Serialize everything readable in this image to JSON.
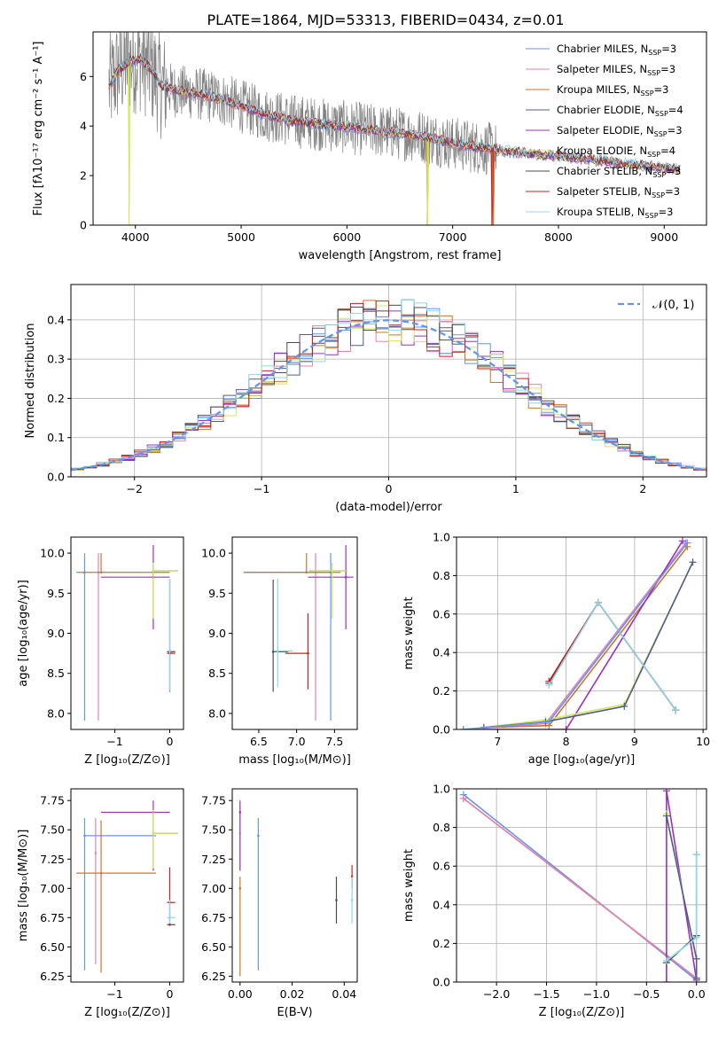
{
  "colors": {
    "Chabrier MILES": "#6495ed",
    "Salpeter MILES": "#e383b4",
    "Kroupa MILES": "#d17527",
    "Chabrier ELODIE": "#4f5d8f",
    "Salpeter ELODIE": "#9b30c0",
    "Kroupa ELODIE": "#d4e85a",
    "Chabrier STELIB": "#4c4c4c",
    "Salpeter STELIB": "#c42222",
    "Kroupa STELIB": "#8fd6e8",
    "data": "#808080"
  },
  "chart_data": [
    {
      "id": "spectrum",
      "type": "line",
      "title": "PLATE=1864, MJD=53313, FIBERID=0434, z=0.01",
      "xlabel": "wavelength [Angstrom, rest frame]",
      "ylabel": "Flux [fλ10⁻¹⁷ erg cm⁻² s⁻¹ A⁻¹]",
      "xlim": [
        3600,
        9400
      ],
      "ylim": [
        0,
        7.8
      ],
      "xticks": [
        4000,
        5000,
        6000,
        7000,
        8000,
        9000
      ],
      "yticks": [
        0,
        2,
        4,
        6
      ],
      "grid": false,
      "legend_loc": "upper right",
      "legend": [
        {
          "name": "Chabrier MILES",
          "nssp": "3"
        },
        {
          "name": "Salpeter MILES",
          "nssp": "3"
        },
        {
          "name": "Kroupa MILES",
          "nssp": "3"
        },
        {
          "name": "Chabrier ELODIE",
          "nssp": "4"
        },
        {
          "name": "Salpeter ELODIE",
          "nssp": "3"
        },
        {
          "name": "Kroupa ELODIE",
          "nssp": "4"
        },
        {
          "name": "Chabrier STELIB",
          "nssp": "3"
        },
        {
          "name": "Salpeter STELIB",
          "nssp": "3"
        },
        {
          "name": "Kroupa STELIB",
          "nssp": "3"
        }
      ],
      "model_continuum": {
        "x": [
          3750,
          3850,
          3950,
          4050,
          4150,
          4250,
          4400,
          4600,
          4800,
          5000,
          5200,
          5500,
          5800,
          6100,
          6400,
          6700,
          7000,
          7300,
          7500,
          7800,
          8100,
          8400,
          8700,
          9000,
          9150
        ],
        "y": [
          5.6,
          6.3,
          6.6,
          6.7,
          6.3,
          5.6,
          5.4,
          5.3,
          5.1,
          4.8,
          4.5,
          4.2,
          4.05,
          3.9,
          3.75,
          3.6,
          3.3,
          3.1,
          3.0,
          2.85,
          2.75,
          2.6,
          2.45,
          2.3,
          2.25
        ]
      },
      "model_dropouts": [
        {
          "series": "Kroupa ELODIE",
          "x": 3940
        },
        {
          "series": "Kroupa MILES",
          "x": 6760
        },
        {
          "series": "Kroupa ELODIE",
          "x": 6765
        },
        {
          "series": "Salpeter STELIB",
          "x": 7370
        },
        {
          "series": "Kroupa MILES",
          "x": 7385
        }
      ],
      "data_noisy_until": 7420
    },
    {
      "id": "residuals",
      "type": "histogram",
      "xlabel": "(data-model)/error",
      "ylabel": "Normed distribution",
      "xlim": [
        -2.5,
        2.5
      ],
      "ylim": [
        0,
        0.49
      ],
      "xticks": [
        -2,
        -1,
        0,
        1,
        2
      ],
      "yticks": [
        0.0,
        0.1,
        0.2,
        0.3,
        0.4
      ],
      "grid": true,
      "legend_loc": "upper right",
      "legend": [
        {
          "name": "𝒩(0, 1)"
        }
      ],
      "bin_width": 0.1,
      "bin_start": -2.5,
      "reference_curve": "normal(0,1)"
    },
    {
      "id": "z-age",
      "type": "errorbar",
      "xlabel": "Z [log₁₀(Z/Z⊙)]",
      "ylabel": "age  [log₁₀(age/yr)]",
      "xlim": [
        -1.8,
        0.25
      ],
      "ylim": [
        7.8,
        10.2
      ],
      "xticks": [
        -1,
        0
      ],
      "yticks": [
        8.0,
        8.5,
        9.0,
        9.5,
        10.0
      ],
      "points": [
        {
          "series": "Chabrier MILES",
          "x": -1.55,
          "y": 9.76,
          "xerr": [
            0,
            0
          ],
          "yerr": [
            1.85,
            0.24
          ]
        },
        {
          "series": "Salpeter MILES",
          "x": -1.3,
          "y": 9.76,
          "xerr": [
            0,
            0
          ],
          "yerr": [
            1.85,
            0.24
          ]
        },
        {
          "series": "Kroupa MILES",
          "x": -1.25,
          "y": 9.76,
          "xerr": [
            0.45,
            1.25
          ],
          "yerr": [
            0,
            0.24
          ]
        },
        {
          "series": "Chabrier ELODIE",
          "x": -0.3,
          "y": 9.78,
          "xerr": [
            0,
            0.45
          ],
          "yerr": [
            0,
            0
          ]
        },
        {
          "series": "Salpeter ELODIE",
          "x": -0.3,
          "y": 9.7,
          "xerr": [
            0.95,
            0.3
          ],
          "yerr": [
            0.65,
            0.4
          ]
        },
        {
          "series": "Kroupa ELODIE",
          "x": -0.3,
          "y": 9.78,
          "xerr": [
            0,
            0.45
          ],
          "yerr": [
            0.6,
            0.1
          ]
        },
        {
          "series": "Chabrier STELIB",
          "x": 0.0,
          "y": 8.77,
          "xerr": [
            0.05,
            0.1
          ],
          "yerr": [
            0.5,
            0.9
          ]
        },
        {
          "series": "Salpeter STELIB",
          "x": 0.0,
          "y": 8.75,
          "xerr": [
            0.05,
            0.1
          ],
          "yerr": [
            0,
            0
          ]
        },
        {
          "series": "Kroupa STELIB",
          "x": 0.0,
          "y": 8.78,
          "xerr": [
            0.05,
            0.1
          ],
          "yerr": [
            0.5,
            0.9
          ]
        }
      ]
    },
    {
      "id": "mass-age",
      "type": "errorbar",
      "xlabel": "mass [log₁₀(M/M⊙)]",
      "ylabel": "",
      "xlim": [
        6.15,
        7.8
      ],
      "ylim": [
        7.8,
        10.2
      ],
      "xticks": [
        6.5,
        7.0,
        7.5
      ],
      "yticks": [
        8.0,
        8.5,
        9.0,
        9.5,
        10.0
      ],
      "points": [
        {
          "series": "Chabrier MILES",
          "x": 7.45,
          "y": 9.76,
          "xerr": [
            1.15,
            0
          ],
          "yerr": [
            1.85,
            0.24
          ]
        },
        {
          "series": "Salpeter MILES",
          "x": 7.25,
          "y": 9.76,
          "xerr": [
            0,
            0
          ],
          "yerr": [
            1.85,
            0.24
          ]
        },
        {
          "series": "Kroupa MILES",
          "x": 7.13,
          "y": 9.76,
          "xerr": [
            0.83,
            0.45
          ],
          "yerr": [
            0,
            0.24
          ]
        },
        {
          "series": "Chabrier ELODIE",
          "x": 7.47,
          "y": 9.78,
          "xerr": [
            0.3,
            0.2
          ],
          "yerr": [
            0,
            0
          ]
        },
        {
          "series": "Salpeter ELODIE",
          "x": 7.65,
          "y": 9.7,
          "xerr": [
            0.5,
            0.1
          ],
          "yerr": [
            0.65,
            0.4
          ]
        },
        {
          "series": "Kroupa ELODIE",
          "x": 7.47,
          "y": 9.78,
          "xerr": [
            0.3,
            0.2
          ],
          "yerr": [
            0.6,
            0.1
          ]
        },
        {
          "series": "Chabrier STELIB",
          "x": 6.69,
          "y": 8.77,
          "xerr": [
            0,
            0.2
          ],
          "yerr": [
            0.5,
            0.9
          ]
        },
        {
          "series": "Salpeter STELIB",
          "x": 7.15,
          "y": 8.75,
          "xerr": [
            0.3,
            0
          ],
          "yerr": [
            0.45,
            0.5
          ]
        },
        {
          "series": "Kroupa STELIB",
          "x": 6.75,
          "y": 8.78,
          "xerr": [
            0.05,
            0.2
          ],
          "yerr": [
            0.45,
            0.9
          ]
        }
      ]
    },
    {
      "id": "age-weight",
      "type": "line",
      "xlabel": "age  [log₁₀(age/yr)]",
      "ylabel": "mass weight",
      "xlim": [
        6.4,
        10.05
      ],
      "ylim": [
        0,
        1.0
      ],
      "xticks": [
        7,
        8,
        9,
        10
      ],
      "yticks": [
        0.0,
        0.2,
        0.4,
        0.6,
        0.8,
        1.0
      ],
      "grid": true,
      "series": [
        {
          "series": "Salpeter MILES",
          "x": [
            6.5,
            7.7,
            9.75
          ],
          "y": [
            0.0,
            0.03,
            0.97
          ]
        },
        {
          "series": "Kroupa MILES",
          "x": [
            6.8,
            7.75,
            9.77
          ],
          "y": [
            0.01,
            0.02,
            0.95
          ]
        },
        {
          "series": "Salpeter ELODIE",
          "x": [
            6.8,
            8.0,
            9.7
          ],
          "y": [
            0.0,
            0.0,
            0.98
          ]
        },
        {
          "series": "Kroupa ELODIE",
          "x": [
            6.8,
            7.7,
            8.85,
            9.85
          ],
          "y": [
            0.01,
            0.05,
            0.13,
            0.87
          ]
        },
        {
          "series": "Chabrier ELODIE",
          "x": [
            6.8,
            7.7,
            8.85,
            9.85
          ],
          "y": [
            0.01,
            0.04,
            0.12,
            0.87
          ]
        },
        {
          "series": "Chabrier STELIB",
          "x": [
            7.75,
            8.47,
            9.6
          ],
          "y": [
            0.24,
            0.66,
            0.1
          ]
        },
        {
          "series": "Salpeter STELIB",
          "x": [
            7.75,
            8.47,
            9.6
          ],
          "y": [
            0.25,
            0.66,
            0.1
          ]
        },
        {
          "series": "Kroupa STELIB",
          "x": [
            7.75,
            8.47,
            9.6
          ],
          "y": [
            0.23,
            0.66,
            0.1
          ]
        },
        {
          "series": "Chabrier MILES",
          "x": [
            6.5,
            7.75,
            9.77
          ],
          "y": [
            0.0,
            0.04,
            0.97
          ]
        }
      ]
    },
    {
      "id": "z-mass",
      "type": "errorbar",
      "xlabel": "Z [log₁₀(Z/Z⊙)]",
      "ylabel": "mass [log₁₀(M/M⊙)]",
      "xlim": [
        -1.8,
        0.25
      ],
      "ylim": [
        6.2,
        7.85
      ],
      "xticks": [
        -1,
        0
      ],
      "yticks": [
        6.25,
        6.5,
        6.75,
        7.0,
        7.25,
        7.5,
        7.75
      ],
      "points": [
        {
          "series": "Chabrier MILES",
          "x": -1.55,
          "y": 7.45,
          "xerr": [
            0,
            1.3
          ],
          "yerr": [
            1.15,
            0.15
          ]
        },
        {
          "series": "Salpeter MILES",
          "x": -1.35,
          "y": 7.3,
          "xerr": [
            0,
            0
          ],
          "yerr": [
            0.95,
            0.3
          ]
        },
        {
          "series": "Kroupa MILES",
          "x": -1.25,
          "y": 7.13,
          "xerr": [
            0.45,
            1.0
          ],
          "yerr": [
            0.85,
            0.45
          ]
        },
        {
          "series": "Chabrier ELODIE",
          "x": -0.3,
          "y": 7.47,
          "xerr": [
            0,
            0.45
          ],
          "yerr": [
            0,
            0
          ]
        },
        {
          "series": "Salpeter ELODIE",
          "x": -0.3,
          "y": 7.65,
          "xerr": [
            0.95,
            0.3
          ],
          "yerr": [
            0.5,
            0.1
          ]
        },
        {
          "series": "Kroupa ELODIE",
          "x": -0.3,
          "y": 7.47,
          "xerr": [
            0,
            0.45
          ],
          "yerr": [
            0.3,
            0.2
          ]
        },
        {
          "series": "Chabrier STELIB",
          "x": 0.0,
          "y": 6.69,
          "xerr": [
            0.05,
            0.1
          ],
          "yerr": [
            0,
            0
          ]
        },
        {
          "series": "Salpeter STELIB",
          "x": 0.0,
          "y": 6.88,
          "xerr": [
            0.05,
            0.1
          ],
          "yerr": [
            0.2,
            0.3
          ]
        },
        {
          "series": "Kroupa STELIB",
          "x": 0.0,
          "y": 6.75,
          "xerr": [
            0.05,
            0.1
          ],
          "yerr": [
            0.05,
            0.15
          ]
        }
      ]
    },
    {
      "id": "ebv-mass",
      "type": "errorbar",
      "xlabel": "E(B-V)",
      "ylabel": "",
      "xlim": [
        -0.003,
        0.045
      ],
      "ylim": [
        6.2,
        7.85
      ],
      "xticks": [
        0.0,
        0.02,
        0.04
      ],
      "yticks": [
        6.25,
        6.5,
        6.75,
        7.0,
        7.25,
        7.5,
        7.75
      ],
      "points": [
        {
          "series": "Kroupa MILES",
          "x": 0.0,
          "y": 7.0,
          "xerr": [
            0,
            0
          ],
          "yerr": [
            0.75,
            0.1
          ]
        },
        {
          "series": "Kroupa ELODIE",
          "x": 0.0,
          "y": 7.47,
          "xerr": [
            0,
            0
          ],
          "yerr": [
            0.3,
            0.25
          ]
        },
        {
          "series": "Salpeter ELODIE",
          "x": 0.0,
          "y": 7.65,
          "xerr": [
            0,
            0
          ],
          "yerr": [
            0.5,
            0.1
          ]
        },
        {
          "series": "Chabrier MILES",
          "x": 0.007,
          "y": 7.45,
          "xerr": [
            0,
            0
          ],
          "yerr": [
            1.15,
            0.15
          ]
        },
        {
          "series": "Chabrier STELIB",
          "x": 0.037,
          "y": 6.9,
          "xerr": [
            0,
            0
          ],
          "yerr": [
            0.2,
            0.2
          ]
        },
        {
          "series": "Salpeter STELIB",
          "x": 0.043,
          "y": 7.1,
          "xerr": [
            0,
            0
          ],
          "yerr": [
            0.1,
            0.1
          ]
        },
        {
          "series": "Kroupa STELIB",
          "x": 0.043,
          "y": 6.9,
          "xerr": [
            0,
            0
          ],
          "yerr": [
            0.2,
            0.2
          ]
        }
      ]
    },
    {
      "id": "z-weight",
      "type": "line",
      "xlabel": "Z [log₁₀(Z/Z⊙)]",
      "ylabel": "mass weight",
      "xlim": [
        -2.4,
        0.1
      ],
      "ylim": [
        0,
        1.0
      ],
      "xticks": [
        -2.0,
        -1.5,
        -1.0,
        -0.5,
        0.0
      ],
      "yticks": [
        0.0,
        0.2,
        0.4,
        0.6,
        0.8,
        1.0
      ],
      "grid": true,
      "series": [
        {
          "series": "Chabrier MILES",
          "x": [
            -2.33,
            0.0
          ],
          "y": [
            0.97,
            0.01
          ]
        },
        {
          "series": "Kroupa MILES",
          "x": [
            -2.33,
            0.0
          ],
          "y": [
            0.95,
            0.02
          ]
        },
        {
          "series": "Salpeter MILES",
          "x": [
            -2.33,
            0.0
          ],
          "y": [
            0.95,
            0.02
          ]
        },
        {
          "series": "Salpeter ELODIE",
          "x": [
            -0.3,
            -0.3,
            0.0
          ],
          "y": [
            0.0,
            0.99,
            0.01
          ]
        },
        {
          "series": "Kroupa ELODIE",
          "x": [
            -0.3,
            0.0,
            0.0
          ],
          "y": [
            0.87,
            0.12,
            0.0
          ]
        },
        {
          "series": "Chabrier ELODIE",
          "x": [
            -0.3,
            0.0,
            0.0
          ],
          "y": [
            0.86,
            0.12,
            0.02
          ]
        },
        {
          "series": "Chabrier STELIB",
          "x": [
            -0.3,
            0.0,
            0.0
          ],
          "y": [
            0.1,
            0.24,
            0.66
          ]
        },
        {
          "series": "Kroupa STELIB",
          "x": [
            -0.3,
            0.0,
            0.0
          ],
          "y": [
            0.11,
            0.23,
            0.66
          ]
        }
      ]
    }
  ]
}
